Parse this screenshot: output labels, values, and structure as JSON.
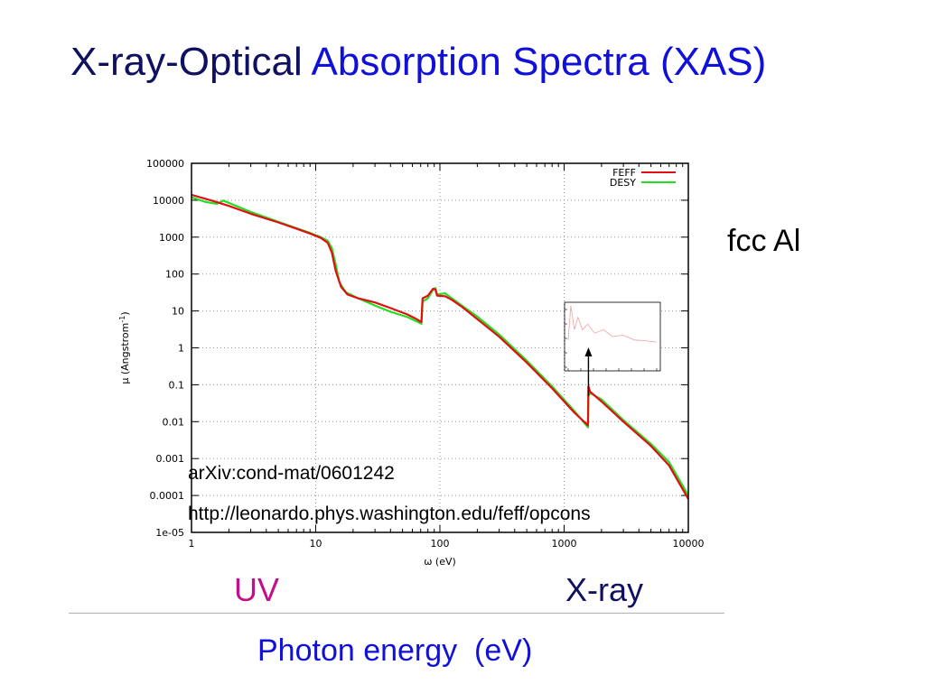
{
  "slide": {
    "title_part1": "X-ray-Optical",
    "title_part2": "Absorption Spectra (XAS)",
    "side_label": "fcc Al",
    "uv_label": "UV",
    "xray_label": "X-ray",
    "bottom_label": "Photon energy  (eV)",
    "reference_arxiv": "arXiv:cond-mat/0601242",
    "reference_url": "http://leonardo.phys.washington.edu/feff/opcons",
    "colors": {
      "title_dark": "#101060",
      "title_blue": "#1010d8",
      "uv": "#c0108c"
    }
  },
  "chart_data": {
    "type": "line",
    "title": "",
    "xlabel": "ω (eV)",
    "ylabel": "μ (Angstrom",
    "ylabel_sup": "-1",
    "ylabel_close": ")",
    "x_scale": "log",
    "y_scale": "log",
    "xlim": [
      1,
      10000
    ],
    "ylim": [
      1e-05,
      100000
    ],
    "x_ticks": [
      {
        "value": 1,
        "label": "1"
      },
      {
        "value": 10,
        "label": "10"
      },
      {
        "value": 100,
        "label": "100"
      },
      {
        "value": 1000,
        "label": "1000"
      },
      {
        "value": 10000,
        "label": "10000"
      }
    ],
    "y_ticks": [
      {
        "value": 100000,
        "label": "100000"
      },
      {
        "value": 10000,
        "label": "10000"
      },
      {
        "value": 1000,
        "label": "1000"
      },
      {
        "value": 100,
        "label": "100"
      },
      {
        "value": 10,
        "label": "10"
      },
      {
        "value": 1,
        "label": "1"
      },
      {
        "value": 0.1,
        "label": "0.1"
      },
      {
        "value": 0.01,
        "label": "0.01"
      },
      {
        "value": 0.001,
        "label": "0.001"
      },
      {
        "value": 0.0001,
        "label": "0.0001"
      },
      {
        "value": 1e-05,
        "label": "1e-05"
      }
    ],
    "grid": true,
    "legend_position": "top-right",
    "series": [
      {
        "name": "FEFF",
        "color": "#e01010",
        "points": [
          [
            1,
            14000
          ],
          [
            1.5,
            9500
          ],
          [
            2,
            7000
          ],
          [
            3,
            4300
          ],
          [
            5,
            2500
          ],
          [
            7,
            1700
          ],
          [
            9,
            1250
          ],
          [
            11,
            950
          ],
          [
            12.5,
            700
          ],
          [
            13.5,
            380
          ],
          [
            14.5,
            120
          ],
          [
            16,
            45
          ],
          [
            18,
            28
          ],
          [
            22,
            22
          ],
          [
            30,
            17
          ],
          [
            40,
            12
          ],
          [
            55,
            8
          ],
          [
            65,
            6
          ],
          [
            71,
            5
          ],
          [
            72.5,
            22
          ],
          [
            80,
            26
          ],
          [
            88,
            40
          ],
          [
            92,
            38
          ],
          [
            95,
            26
          ],
          [
            110,
            25
          ],
          [
            125,
            20
          ],
          [
            150,
            13
          ],
          [
            200,
            6
          ],
          [
            300,
            2
          ],
          [
            500,
            0.4
          ],
          [
            800,
            0.08
          ],
          [
            1200,
            0.018
          ],
          [
            1555,
            0.008
          ],
          [
            1570,
            0.09
          ],
          [
            1620,
            0.065
          ],
          [
            2000,
            0.035
          ],
          [
            3000,
            0.01
          ],
          [
            5000,
            0.0022
          ],
          [
            7000,
            0.00065
          ],
          [
            10000,
            8e-05
          ]
        ]
      },
      {
        "name": "DESY",
        "color": "#22dd22",
        "points": [
          [
            1,
            12000
          ],
          [
            1.3,
            9000
          ],
          [
            1.6,
            8000
          ],
          [
            1.8,
            9800
          ],
          [
            2,
            8500
          ],
          [
            3,
            4800
          ],
          [
            5,
            2600
          ],
          [
            7,
            1750
          ],
          [
            9,
            1300
          ],
          [
            11,
            1000
          ],
          [
            12.5,
            800
          ],
          [
            13.5,
            500
          ],
          [
            14.5,
            180
          ],
          [
            15.5,
            60
          ],
          [
            17.5,
            32
          ],
          [
            22,
            22
          ],
          [
            30,
            14
          ],
          [
            40,
            9.5
          ],
          [
            55,
            6.8
          ],
          [
            65,
            5.2
          ],
          [
            71,
            4.5
          ],
          [
            72.5,
            18
          ],
          [
            80,
            22
          ],
          [
            88,
            38
          ],
          [
            92,
            42
          ],
          [
            95,
            28
          ],
          [
            110,
            30
          ],
          [
            125,
            22
          ],
          [
            150,
            14
          ],
          [
            200,
            7
          ],
          [
            300,
            2.3
          ],
          [
            500,
            0.45
          ],
          [
            800,
            0.09
          ],
          [
            1200,
            0.02
          ],
          [
            1555,
            0.007
          ],
          [
            1570,
            0.05
          ],
          [
            1620,
            0.06
          ],
          [
            2000,
            0.04
          ],
          [
            3000,
            0.011
          ],
          [
            5000,
            0.0025
          ],
          [
            7000,
            0.0008
          ],
          [
            10000,
            0.0001
          ]
        ]
      }
    ],
    "inset": {
      "description_series_color": "#f2a0a0",
      "points": [
        [
          0,
          0.45
        ],
        [
          0.03,
          0.95
        ],
        [
          0.07,
          0.6
        ],
        [
          0.11,
          0.78
        ],
        [
          0.16,
          0.6
        ],
        [
          0.22,
          0.68
        ],
        [
          0.3,
          0.55
        ],
        [
          0.4,
          0.6
        ],
        [
          0.5,
          0.5
        ],
        [
          0.62,
          0.52
        ],
        [
          0.75,
          0.45
        ],
        [
          0.88,
          0.44
        ],
        [
          1,
          0.42
        ]
      ]
    }
  }
}
